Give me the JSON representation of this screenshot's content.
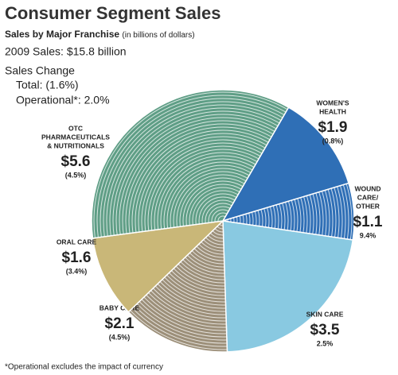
{
  "chart_data": {
    "type": "pie",
    "title": "Consumer Segment Sales",
    "subtitle": "Sales by Major Franchise",
    "unit_note": "(in billions of dollars)",
    "total_sales": "2009 Sales: $15.8 billion",
    "change_heading": "Sales Change",
    "change_total": "Total: (1.6%)",
    "change_operational": "Operational*: 2.0%",
    "footnote": "*Operational excludes the impact of currency",
    "categories": [
      [
        "WOMEN'S",
        "HEALTH"
      ],
      [
        "WOUND",
        "CARE/",
        "OTHER"
      ],
      [
        "SKIN CARE"
      ],
      [
        "BABY CARE"
      ],
      [
        "ORAL CARE"
      ],
      [
        "OTC",
        "PHARMACEUTICALS",
        "& NUTRITIONALS"
      ]
    ],
    "values": [
      1.9,
      1.1,
      3.5,
      2.1,
      1.6,
      5.6
    ],
    "value_labels": [
      "$1.9",
      "$1.1",
      "$3.5",
      "$2.1",
      "$1.6",
      "$5.6"
    ],
    "changes": [
      "(0.8%)",
      "9.4%",
      "2.5%",
      "(4.5%)",
      "(3.4%)",
      "(4.5%)"
    ],
    "colors": [
      "#2f6fb6",
      "#2f6fb6",
      "#89c9e1",
      "#9c8f79",
      "#c9b778",
      "#5f9e86"
    ],
    "striped": [
      false,
      true,
      false,
      true,
      false,
      true
    ]
  }
}
